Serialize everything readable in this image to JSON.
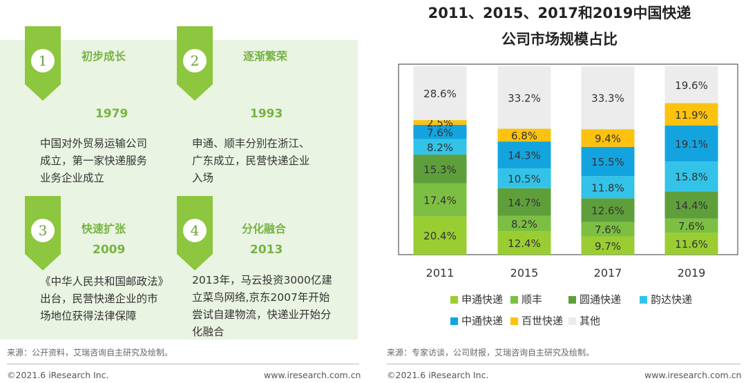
{
  "timeline": {
    "milestones": [
      {
        "number": "1",
        "title": "初步成长",
        "year": "1979",
        "lines": [
          "中国对外贸易运输公司",
          "成立，第一家快递服务",
          "业务企业成立"
        ]
      },
      {
        "number": "2",
        "title": "逐渐繁荣",
        "year": "1993",
        "lines": [
          "申通、顺丰分别在浙江、",
          "广东成立，民营快递企业",
          "入场"
        ]
      },
      {
        "number": "3",
        "title": "快速扩张",
        "year": "2009",
        "lines": [
          "《中华人民共和国邮政法》",
          "出台，民营快递企业的市",
          "场地位获得法律保障"
        ]
      },
      {
        "number": "4",
        "title": "分化融合",
        "year": "2013",
        "lines": [
          "2013年，马云投资3000亿建",
          "立菜鸟网络,京东2007年开始",
          "尝试自建物流，快递业开始分",
          "化融合"
        ]
      }
    ],
    "source": "来源：公开资料，艾瑞咨询自主研究及绘制。"
  },
  "chart_data": {
    "type": "bar",
    "stacked": true,
    "title_lines": [
      "2011、2015、2017和2019中国快递",
      "公司市场规模占比"
    ],
    "categories": [
      "2011",
      "2015",
      "2017",
      "2019"
    ],
    "ylim": [
      0,
      100
    ],
    "grid": false,
    "legend_position": "bottom",
    "series": [
      {
        "name": "申通快递",
        "color": "#9acd32",
        "values": [
          20.4,
          12.4,
          9.7,
          11.6
        ]
      },
      {
        "name": "顺丰",
        "color": "#7cbf42",
        "values": [
          17.4,
          8.2,
          7.6,
          7.6
        ]
      },
      {
        "name": "圆通快递",
        "color": "#5e9f3b",
        "values": [
          15.3,
          14.7,
          12.6,
          14.4
        ]
      },
      {
        "name": "韵达快递",
        "color": "#33c3e8",
        "values": [
          8.2,
          10.5,
          11.8,
          15.8
        ]
      },
      {
        "name": "中通快递",
        "color": "#13a4e0",
        "values": [
          7.6,
          14.3,
          15.5,
          19.1
        ]
      },
      {
        "name": "百世快递",
        "color": "#fcc20f",
        "values": [
          2.5,
          6.8,
          9.4,
          11.9
        ]
      },
      {
        "name": "其他",
        "color": "#ececec",
        "values": [
          28.6,
          33.2,
          33.3,
          19.6
        ]
      }
    ],
    "value_suffix": "%",
    "source": "来源：专家访谈，公司财报，艾瑞咨询自主研究及绘制。"
  },
  "footer": {
    "left": {
      "copyright": "©2021.6 iResearch Inc.",
      "url": "www.iresearch.com.cn"
    },
    "right": {
      "copyright": "©2021.6 iResearch Inc.",
      "url": "www.iresearch.com.cn"
    }
  }
}
